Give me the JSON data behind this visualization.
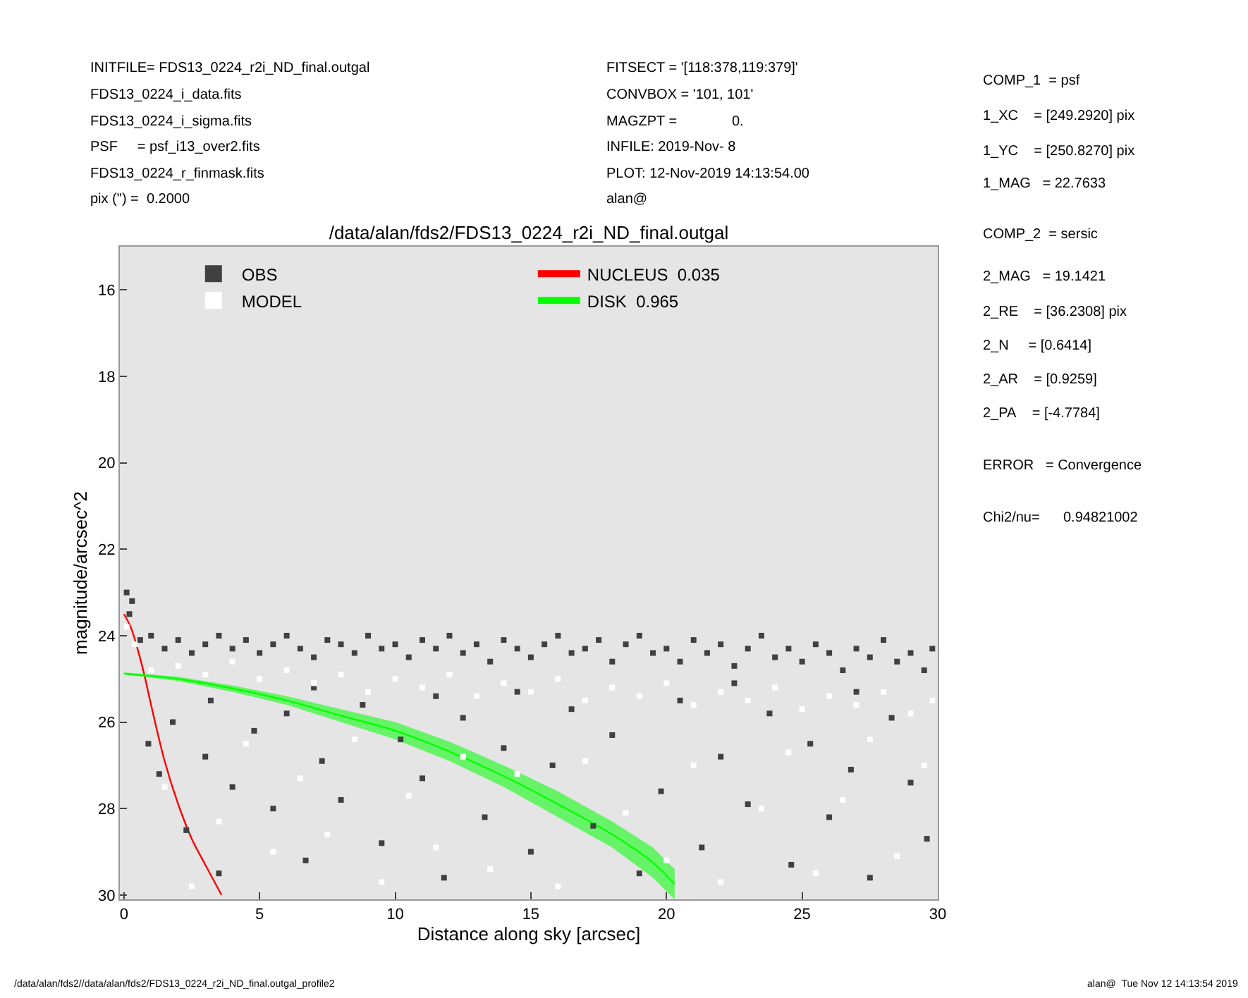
{
  "chart_data": {
    "type": "scatter",
    "title": "/data/alan/fds2/FDS13_0224_r2i_ND_final.outgal",
    "xlabel": "Distance along sky [arcsec]",
    "ylabel": "magnitude/arcsec^2",
    "xlim": [
      -0.15,
      30
    ],
    "xticks": [
      0,
      5,
      10,
      15,
      20,
      25,
      30
    ],
    "ylim": [
      30.1,
      15
    ],
    "yticks": [
      16,
      18,
      20,
      22,
      24,
      26,
      28,
      30
    ],
    "grid": false,
    "legend": "top left",
    "series": [
      {
        "name": "OBS",
        "color": "#404040",
        "marker": "square",
        "x": [
          0.1,
          0.3,
          0.2,
          0.6,
          1,
          1.5,
          2,
          2.5,
          3,
          3.5,
          4,
          4.5,
          5,
          5.5,
          6,
          6.5,
          7,
          7.5,
          8,
          8.5,
          9,
          9.5,
          10,
          10.5,
          11,
          11.5,
          12,
          12.5,
          13,
          13.5,
          14,
          14.5,
          15,
          15.5,
          16,
          16.5,
          17,
          17.5,
          18,
          18.5,
          19,
          19.5,
          20,
          20.5,
          21,
          21.5,
          22,
          22.5,
          23,
          23.5,
          24,
          24.5,
          25,
          25.5,
          26,
          26.5,
          27,
          27.5,
          28,
          28.5,
          29,
          29.5,
          29.8,
          0.9,
          1.3,
          1.8,
          2.3,
          3,
          3.5,
          4,
          4.8,
          5.5,
          6,
          6.7,
          7.3,
          8,
          8.8,
          9.5,
          10.2,
          11,
          11.8,
          12.5,
          13.3,
          14,
          15,
          15.8,
          16.5,
          17.3,
          18,
          19,
          19.8,
          20.5,
          21.3,
          22,
          23,
          23.8,
          24.6,
          25.3,
          26,
          26.8,
          27.5,
          28.3,
          29,
          29.6,
          14.5,
          7,
          22.5,
          3.2,
          11.5,
          27
        ],
        "values": [
          23.0,
          23.2,
          23.5,
          24.1,
          24.0,
          24.3,
          24.1,
          24.4,
          24.2,
          24.0,
          24.3,
          24.1,
          24.4,
          24.2,
          24.0,
          24.3,
          24.5,
          24.1,
          24.2,
          24.4,
          24.0,
          24.3,
          24.2,
          24.5,
          24.1,
          24.3,
          24.0,
          24.4,
          24.2,
          24.6,
          24.1,
          24.3,
          24.5,
          24.2,
          24.0,
          24.4,
          24.3,
          24.1,
          24.6,
          24.2,
          24.0,
          24.4,
          24.3,
          24.6,
          24.1,
          24.4,
          24.2,
          24.7,
          24.3,
          24.0,
          24.5,
          24.3,
          24.6,
          24.2,
          24.4,
          24.8,
          24.3,
          24.5,
          24.1,
          24.6,
          24.4,
          24.8,
          24.3,
          26.5,
          27.2,
          26.0,
          28.5,
          26.8,
          29.5,
          27.5,
          26.2,
          28.0,
          25.8,
          29.2,
          26.9,
          27.8,
          25.6,
          28.8,
          26.4,
          27.3,
          29.6,
          25.9,
          28.2,
          26.6,
          29.0,
          27.0,
          25.7,
          28.4,
          26.3,
          29.5,
          27.6,
          25.5,
          28.9,
          26.8,
          27.9,
          25.8,
          29.3,
          26.5,
          28.2,
          27.1,
          29.6,
          25.9,
          27.4,
          28.7,
          25.3,
          25.2,
          25.1,
          25.5,
          25.4,
          25.3
        ]
      },
      {
        "name": "MODEL",
        "color": "#ffffff",
        "marker": "square",
        "x": [
          0.1,
          0.4,
          1,
          2,
          3,
          4,
          5,
          6,
          7,
          8,
          9,
          10,
          11,
          12,
          13,
          14,
          15,
          16,
          17,
          18,
          19,
          20,
          21,
          22,
          23,
          24,
          25,
          26,
          27,
          28,
          29,
          29.8,
          1.5,
          2.5,
          3.5,
          4.5,
          5.5,
          6.5,
          7.5,
          8.5,
          9.5,
          10.5,
          11.5,
          12.5,
          13.5,
          14.5,
          16,
          17,
          18.5,
          20,
          21,
          22,
          23.5,
          24.5,
          25.5,
          26.5,
          27.5,
          28.5,
          29.5
        ],
        "values": [
          23.8,
          24.2,
          24.8,
          24.7,
          24.9,
          24.6,
          25.0,
          24.8,
          25.1,
          24.9,
          25.3,
          25.0,
          25.2,
          24.9,
          25.4,
          25.1,
          25.3,
          25.0,
          25.5,
          25.2,
          25.4,
          25.1,
          25.6,
          25.3,
          25.5,
          25.2,
          25.7,
          25.4,
          25.6,
          25.3,
          25.8,
          25.5,
          27.5,
          29.8,
          28.3,
          26.5,
          29.0,
          27.3,
          28.6,
          26.4,
          29.7,
          27.7,
          28.9,
          26.8,
          29.4,
          27.2,
          29.8,
          26.9,
          28.1,
          29.2,
          27.0,
          29.7,
          28.0,
          26.7,
          29.5,
          27.8,
          26.4,
          29.1,
          27.0
        ]
      },
      {
        "name": "NUCLEUS  0.035",
        "color": "#ff0000",
        "type": "line",
        "marker": "none",
        "line_style": "solid",
        "x": [
          0,
          0.25,
          0.5,
          0.75,
          1,
          1.5,
          2,
          2.5,
          3,
          3.6
        ],
        "values": [
          23.5,
          23.8,
          24.3,
          24.9,
          25.6,
          26.9,
          27.9,
          28.7,
          29.3,
          30.0
        ]
      },
      {
        "name": "DISK  0.965",
        "color": "#00ff00",
        "type": "line",
        "marker": "none",
        "line_style": "solid",
        "x": [
          0,
          2,
          4,
          6,
          8,
          10,
          12,
          14,
          16,
          18,
          19.5,
          20.3
        ],
        "values": [
          24.88,
          25.0,
          25.22,
          25.5,
          25.85,
          26.2,
          26.68,
          27.25,
          27.9,
          28.6,
          29.25,
          29.75
        ],
        "upper": [
          24.85,
          24.95,
          25.15,
          25.4,
          25.7,
          26.0,
          26.45,
          27.0,
          27.6,
          28.3,
          28.9,
          29.4
        ],
        "lower": [
          24.9,
          25.05,
          25.3,
          25.6,
          26.0,
          26.4,
          26.9,
          27.5,
          28.2,
          28.9,
          29.6,
          30.1
        ]
      }
    ],
    "annotations": [
      "INITFILE= FDS13_0224_r2i_ND_final.outgal",
      "FDS13_0224_i_data.fits",
      "FDS13_0224_i_sigma.fits",
      "PSF     = psf_i13_over2.fits",
      "FDS13_0224_r_finmask.fits",
      "pix (\") =  0.2000",
      "FITSECT = '[118:378,119:379]'",
      "CONVBOX = '101, 101'",
      "MAGZPT =              0.",
      "INFILE: 2019-Nov- 8",
      "PLOT: 12-Nov-2019 14:13:54.00",
      "alan@",
      "COMP_1  = psf",
      "1_XC    = [249.2920] pix",
      "1_YC    = [250.8270] pix",
      "1_MAG   = 22.7633",
      "COMP_2  = sersic",
      "2_MAG   = 19.1421",
      "2_RE    = [36.2308] pix",
      "2_N     = [0.6414]",
      "2_AR    = [0.9259]",
      "2_PA    = [-4.7784]",
      "ERROR   = Convergence",
      "Chi2/nu=      0.94821002",
      "/data/alan/fds2//data/alan/fds2/FDS13_0224_r2i_ND_final.outgal_profile2",
      "alan@  Tue Nov 12 14:13:54 2019"
    ]
  }
}
